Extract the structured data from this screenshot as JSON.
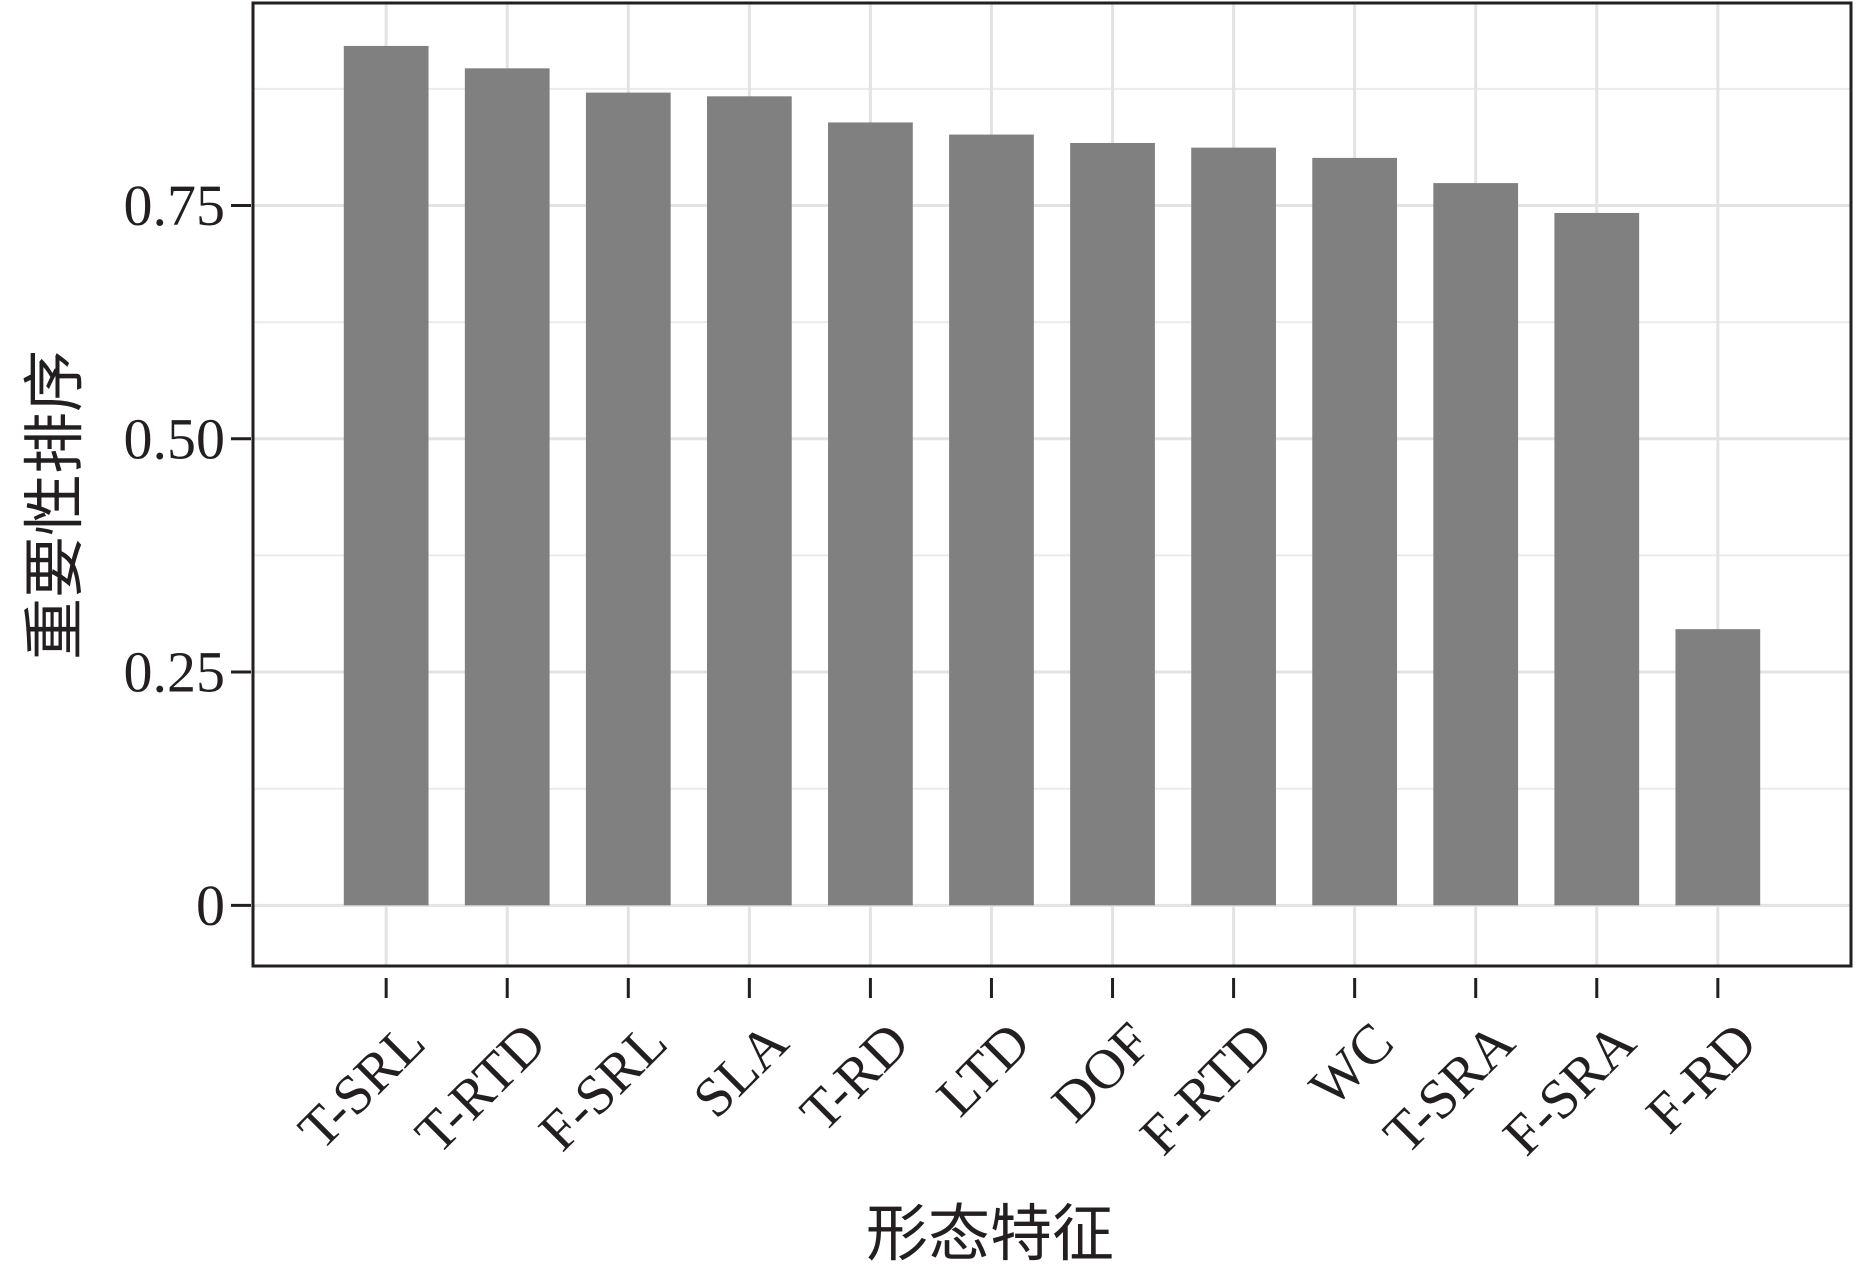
{
  "chart_data": {
    "type": "bar",
    "x_label": "形态特征",
    "y_label": "重要性排序",
    "categories": [
      "T-SRL",
      "T-RTD",
      "F-SRL",
      "SLA",
      "T-RD",
      "LTD",
      "DOF",
      "F-RTD",
      "WC",
      "T-SRA",
      "F-SRA",
      "F-RD"
    ],
    "values": [
      0.921,
      0.897,
      0.871,
      0.867,
      0.839,
      0.826,
      0.817,
      0.812,
      0.801,
      0.774,
      0.742,
      0.296
    ],
    "color": "#808080",
    "ylim": [
      -0.065,
      0.967
    ],
    "yticks": [
      0,
      0.25,
      {
        "value": 0.5,
        "label": "0.50"
      },
      0.75
    ],
    "minor_yticks": [
      0.125,
      0.375,
      0.625,
      0.875
    ],
    "grid": true
  }
}
